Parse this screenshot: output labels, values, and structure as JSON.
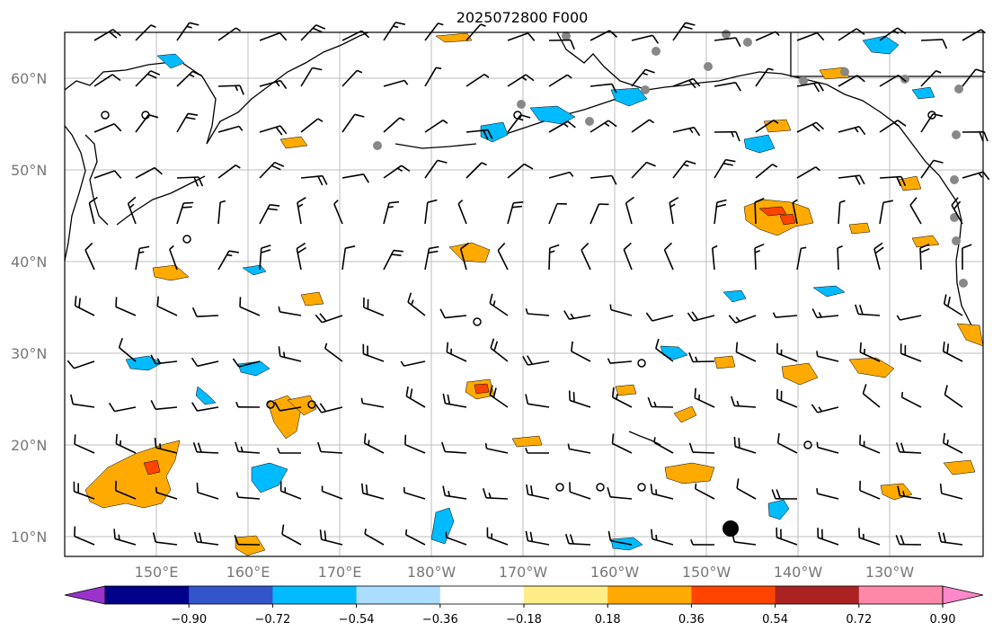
{
  "title": "2025072800 F000",
  "map": {
    "latitude_labels": [
      "60°N",
      "50°N",
      "40°N",
      "30°N",
      "20°N",
      "10°N"
    ],
    "longitude_labels": [
      "150°E",
      "160°E",
      "170°E",
      "180°W",
      "170°W",
      "160°W",
      "150°W",
      "140°W",
      "130°W"
    ],
    "grid": true,
    "fields": [
      "wind barbs",
      "station plots",
      "filled contour anomaly"
    ]
  },
  "colorbar": {
    "ticks": [
      "−0.90",
      "−0.72",
      "−0.54",
      "−0.36",
      "−0.18",
      "0.18",
      "0.36",
      "0.54",
      "0.72",
      "0.90"
    ],
    "colors": [
      "#9933cc",
      "#000088",
      "#3355cc",
      "#00bbff",
      "#aaddff",
      "#ffffff",
      "#ffee88",
      "#ffaa00",
      "#ff4400",
      "#aa2222",
      "#ff88aa",
      "#ff88cc"
    ]
  }
}
